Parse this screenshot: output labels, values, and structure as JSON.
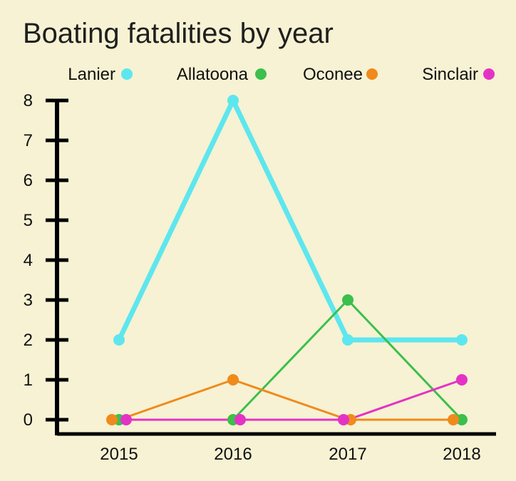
{
  "chart_data": {
    "type": "line",
    "title": "Boating fatalities by year",
    "xlabel": "",
    "ylabel": "",
    "categories": [
      "2015",
      "2016",
      "2017",
      "2018"
    ],
    "ylim": [
      0,
      8
    ],
    "yticks": [
      0,
      1,
      2,
      3,
      4,
      5,
      6,
      7,
      8
    ],
    "grid": false,
    "legend_position": "top",
    "series": [
      {
        "name": "Lanier",
        "color": "#5ee6ee",
        "values": [
          2,
          8,
          2,
          2
        ]
      },
      {
        "name": "Allatoona",
        "color": "#3cbf4c",
        "values": [
          0,
          0,
          3,
          0
        ]
      },
      {
        "name": "Oconee",
        "color": "#f08a1c",
        "values": [
          0,
          1,
          0,
          0
        ]
      },
      {
        "name": "Sinclair",
        "color": "#e532c6",
        "values": [
          0,
          0,
          0,
          1
        ]
      }
    ]
  }
}
